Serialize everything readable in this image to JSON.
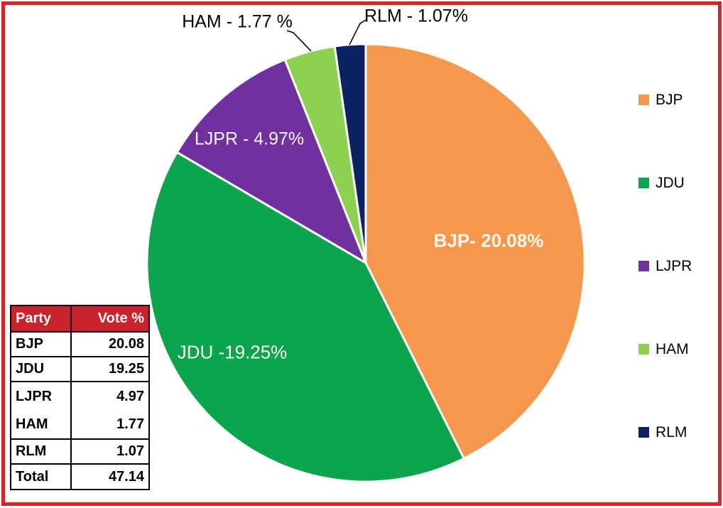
{
  "chart_data": {
    "type": "pie",
    "categories": [
      "BJP",
      "JDU",
      "LJPR",
      "HAM",
      "RLM"
    ],
    "values": [
      20.08,
      19.25,
      4.97,
      1.77,
      1.07
    ],
    "colors": [
      "#F5984C",
      "#0AA54C",
      "#7030A0",
      "#8DD24E",
      "#0B2264"
    ],
    "slice_labels": {
      "bjp": "BJP- 20.08%",
      "jdu": "JDU -19.25%",
      "ljpr": "LJPR - 4.97%",
      "ham": "HAM - 1.77 %",
      "rlm": "RLM - 1.07%"
    },
    "start_angle_deg": 0,
    "direction": "clockwise",
    "legend_position": "right",
    "slice_border_color": "#ffffff"
  },
  "legend": {
    "items": [
      {
        "label": "BJP"
      },
      {
        "label": "JDU"
      },
      {
        "label": "LJPR"
      },
      {
        "label": "HAM"
      },
      {
        "label": "RLM"
      }
    ]
  },
  "table": {
    "headers": {
      "party": "Party",
      "value": "Vote %"
    },
    "rows": [
      {
        "party": "BJP",
        "value": "20.08"
      },
      {
        "party": "JDU",
        "value": "19.25"
      },
      {
        "party": "LJPR",
        "value": "4.97"
      },
      {
        "party": "HAM",
        "value": "1.77"
      },
      {
        "party": "RLM",
        "value": "1.07"
      },
      {
        "party": "Total",
        "value": "47.14"
      }
    ],
    "header_bg": "#C9242B",
    "frame_color": "#DE2127"
  }
}
